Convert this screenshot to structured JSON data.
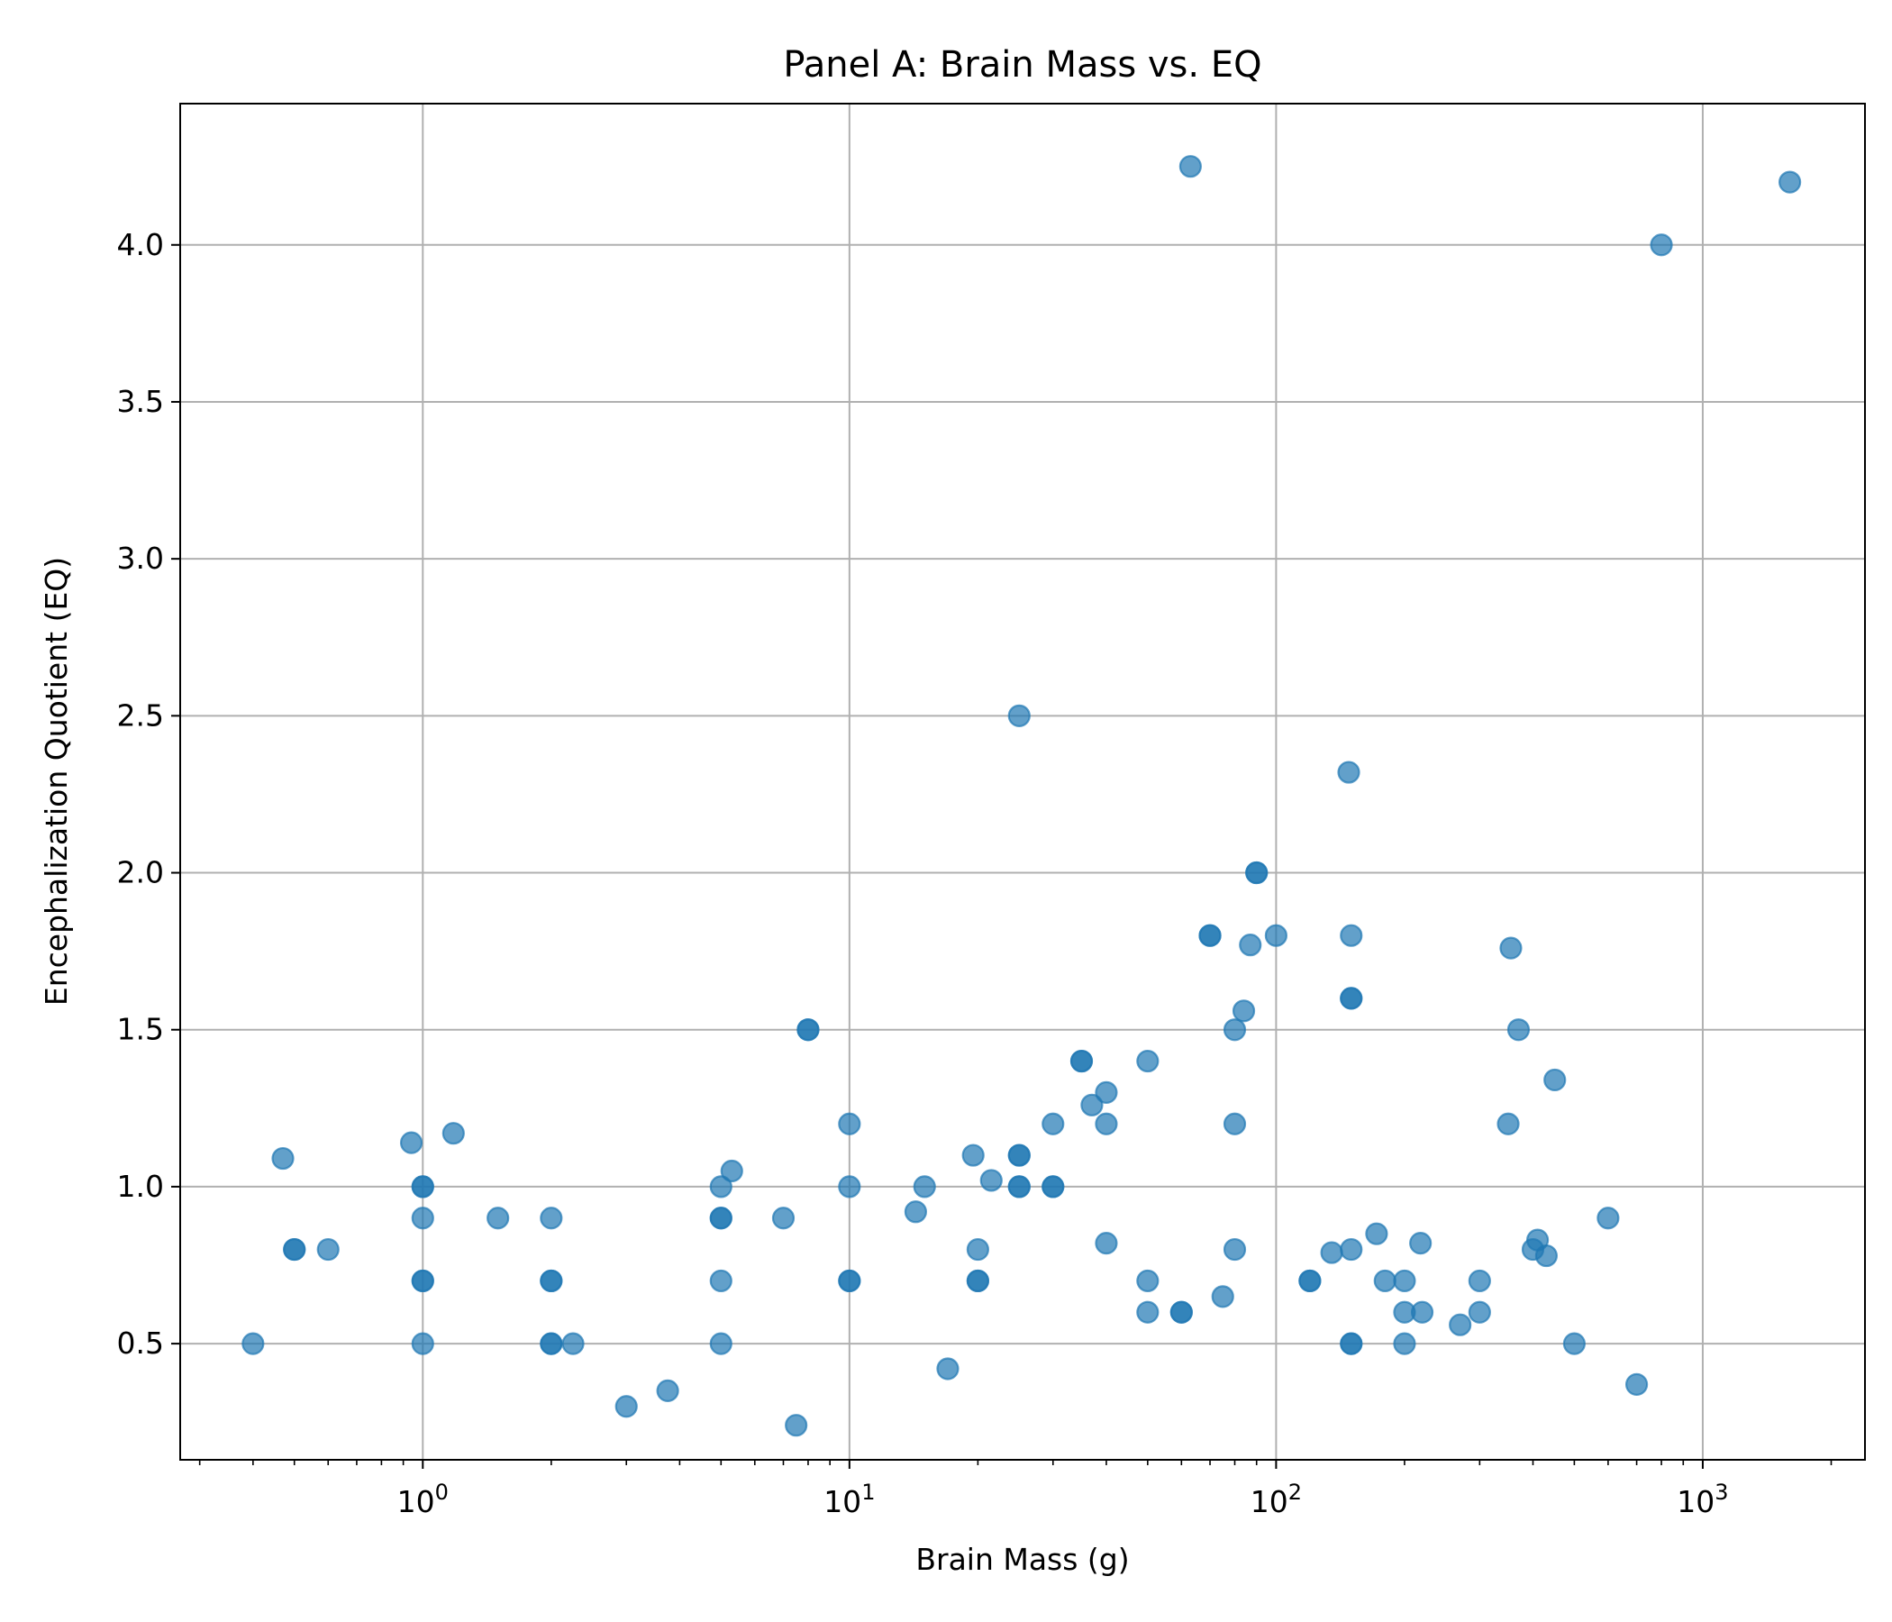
{
  "chart_data": {
    "type": "scatter",
    "title": "Panel A: Brain Mass vs. EQ",
    "xlabel": "Brain Mass (g)",
    "ylabel": "Encephalization Quotient (EQ)",
    "x_scale": "log",
    "xlim": [
      0.27,
      2400
    ],
    "ylim": [
      0.13,
      4.45
    ],
    "x_ticks": [
      {
        "value": 1,
        "base": "10",
        "exp": "0"
      },
      {
        "value": 10,
        "base": "10",
        "exp": "1"
      },
      {
        "value": 100,
        "base": "10",
        "exp": "2"
      },
      {
        "value": 1000,
        "base": "10",
        "exp": "3"
      }
    ],
    "y_ticks": [
      {
        "value": 0.5,
        "label": "0.5"
      },
      {
        "value": 1.0,
        "label": "1.0"
      },
      {
        "value": 1.5,
        "label": "1.5"
      },
      {
        "value": 2.0,
        "label": "2.0"
      },
      {
        "value": 2.5,
        "label": "2.5"
      },
      {
        "value": 3.0,
        "label": "3.0"
      },
      {
        "value": 3.5,
        "label": "3.5"
      },
      {
        "value": 4.0,
        "label": "4.0"
      }
    ],
    "grid": true,
    "marker_color": "#1f77b4",
    "marker_alpha": 0.7,
    "points": [
      {
        "x": 0.4,
        "y": 0.5
      },
      {
        "x": 0.47,
        "y": 1.09
      },
      {
        "x": 0.5,
        "y": 0.8
      },
      {
        "x": 0.5,
        "y": 0.8
      },
      {
        "x": 0.6,
        "y": 0.8
      },
      {
        "x": 0.94,
        "y": 1.14
      },
      {
        "x": 1.0,
        "y": 1.0
      },
      {
        "x": 1.0,
        "y": 1.0
      },
      {
        "x": 1.0,
        "y": 0.9
      },
      {
        "x": 1.0,
        "y": 0.7
      },
      {
        "x": 1.0,
        "y": 0.7
      },
      {
        "x": 1.0,
        "y": 0.5
      },
      {
        "x": 1.18,
        "y": 1.17
      },
      {
        "x": 1.5,
        "y": 0.9
      },
      {
        "x": 2.0,
        "y": 0.9
      },
      {
        "x": 2.0,
        "y": 0.7
      },
      {
        "x": 2.0,
        "y": 0.7
      },
      {
        "x": 2.0,
        "y": 0.5
      },
      {
        "x": 2.0,
        "y": 0.5
      },
      {
        "x": 2.25,
        "y": 0.5
      },
      {
        "x": 3.0,
        "y": 0.3
      },
      {
        "x": 3.75,
        "y": 0.35
      },
      {
        "x": 5.0,
        "y": 1.0
      },
      {
        "x": 5.0,
        "y": 0.9
      },
      {
        "x": 5.0,
        "y": 0.9
      },
      {
        "x": 5.0,
        "y": 0.7
      },
      {
        "x": 5.0,
        "y": 0.5
      },
      {
        "x": 5.3,
        "y": 1.05
      },
      {
        "x": 7.0,
        "y": 0.9
      },
      {
        "x": 7.5,
        "y": 0.24
      },
      {
        "x": 8.0,
        "y": 1.5
      },
      {
        "x": 8.0,
        "y": 1.5
      },
      {
        "x": 10.0,
        "y": 1.2
      },
      {
        "x": 10.0,
        "y": 1.0
      },
      {
        "x": 10.0,
        "y": 0.7
      },
      {
        "x": 10.0,
        "y": 0.7
      },
      {
        "x": 14.3,
        "y": 0.92
      },
      {
        "x": 15.0,
        "y": 1.0
      },
      {
        "x": 17.0,
        "y": 0.42
      },
      {
        "x": 19.5,
        "y": 1.1
      },
      {
        "x": 20.0,
        "y": 0.8
      },
      {
        "x": 20.0,
        "y": 0.7
      },
      {
        "x": 20.0,
        "y": 0.7
      },
      {
        "x": 21.5,
        "y": 1.02
      },
      {
        "x": 25.0,
        "y": 2.5
      },
      {
        "x": 25.0,
        "y": 1.1
      },
      {
        "x": 25.0,
        "y": 1.1
      },
      {
        "x": 25.0,
        "y": 1.0
      },
      {
        "x": 25.0,
        "y": 1.0
      },
      {
        "x": 30.0,
        "y": 1.2
      },
      {
        "x": 30.0,
        "y": 1.0
      },
      {
        "x": 30.0,
        "y": 1.0
      },
      {
        "x": 35.0,
        "y": 1.4
      },
      {
        "x": 35.0,
        "y": 1.4
      },
      {
        "x": 37.0,
        "y": 1.26
      },
      {
        "x": 40.0,
        "y": 1.3
      },
      {
        "x": 40.0,
        "y": 1.2
      },
      {
        "x": 40.0,
        "y": 0.82
      },
      {
        "x": 50.0,
        "y": 1.4
      },
      {
        "x": 50.0,
        "y": 0.7
      },
      {
        "x": 50.0,
        "y": 0.6
      },
      {
        "x": 60.0,
        "y": 0.6
      },
      {
        "x": 60.0,
        "y": 0.6
      },
      {
        "x": 63.0,
        "y": 4.25
      },
      {
        "x": 70.0,
        "y": 1.8
      },
      {
        "x": 70.0,
        "y": 1.8
      },
      {
        "x": 75.0,
        "y": 0.65
      },
      {
        "x": 80.0,
        "y": 1.5
      },
      {
        "x": 80.0,
        "y": 1.2
      },
      {
        "x": 80.0,
        "y": 0.8
      },
      {
        "x": 84.0,
        "y": 1.56
      },
      {
        "x": 87.0,
        "y": 1.77
      },
      {
        "x": 90.0,
        "y": 2.0
      },
      {
        "x": 90.0,
        "y": 2.0
      },
      {
        "x": 100.0,
        "y": 1.8
      },
      {
        "x": 120.0,
        "y": 0.7
      },
      {
        "x": 120.0,
        "y": 0.7
      },
      {
        "x": 135.0,
        "y": 0.79
      },
      {
        "x": 148.0,
        "y": 2.32
      },
      {
        "x": 150.0,
        "y": 1.8
      },
      {
        "x": 150.0,
        "y": 1.6
      },
      {
        "x": 150.0,
        "y": 1.6
      },
      {
        "x": 150.0,
        "y": 0.8
      },
      {
        "x": 150.0,
        "y": 0.5
      },
      {
        "x": 150.0,
        "y": 0.5
      },
      {
        "x": 172.0,
        "y": 0.85
      },
      {
        "x": 180.0,
        "y": 0.7
      },
      {
        "x": 200.0,
        "y": 0.7
      },
      {
        "x": 200.0,
        "y": 0.6
      },
      {
        "x": 200.0,
        "y": 0.5
      },
      {
        "x": 218.0,
        "y": 0.82
      },
      {
        "x": 220.0,
        "y": 0.6
      },
      {
        "x": 270.0,
        "y": 0.56
      },
      {
        "x": 300.0,
        "y": 0.7
      },
      {
        "x": 300.0,
        "y": 0.6
      },
      {
        "x": 350.0,
        "y": 1.2
      },
      {
        "x": 355.0,
        "y": 1.76
      },
      {
        "x": 370.0,
        "y": 1.5
      },
      {
        "x": 400.0,
        "y": 0.8
      },
      {
        "x": 410.0,
        "y": 0.83
      },
      {
        "x": 430.0,
        "y": 0.78
      },
      {
        "x": 450.0,
        "y": 1.34
      },
      {
        "x": 500.0,
        "y": 0.5
      },
      {
        "x": 600.0,
        "y": 0.9
      },
      {
        "x": 700.0,
        "y": 0.37
      },
      {
        "x": 800.0,
        "y": 4.0
      },
      {
        "x": 1600.0,
        "y": 4.2
      }
    ]
  }
}
